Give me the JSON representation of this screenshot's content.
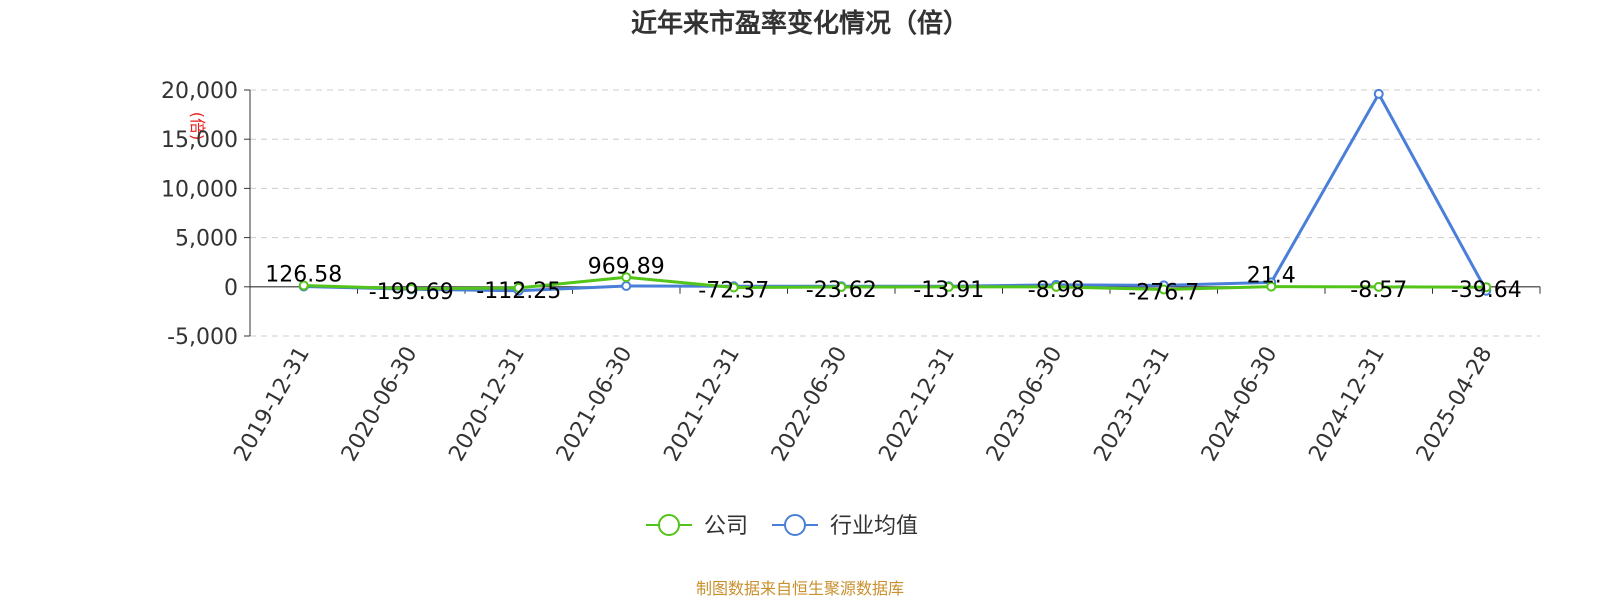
{
  "chart_data": {
    "type": "line",
    "title": "近年来市盈率变化情况（倍）",
    "ylabel": "(倍)",
    "xlabel": "",
    "categories": [
      "2019-12-31",
      "2020-06-30",
      "2020-12-31",
      "2021-06-30",
      "2021-12-31",
      "2022-06-30",
      "2022-12-31",
      "2023-06-30",
      "2023-12-31",
      "2024-06-30",
      "2024-12-31",
      "2025-04-28"
    ],
    "yticks": [
      -5000,
      0,
      5000,
      10000,
      15000,
      20000
    ],
    "ytick_labels": [
      "-5,000",
      "0",
      "5,000",
      "10,000",
      "15,000",
      "20,000"
    ],
    "ylim": [
      -5000,
      20000
    ],
    "grid": true,
    "legend_position": "bottom",
    "series": [
      {
        "name": "公司",
        "color": "#52c41a",
        "values": [
          126.58,
          -199.69,
          -112.25,
          969.89,
          -72.37,
          -23.62,
          -13.91,
          -8.98,
          -276.7,
          21.4,
          -8.57,
          -39.64
        ],
        "labels": [
          "126.58",
          "-199.69",
          "-112.25",
          "969.89",
          "-72.37",
          "-23.62",
          "-13.91",
          "-8.98",
          "-276.7",
          "21.4",
          "-8.57",
          "-39.64"
        ]
      },
      {
        "name": "行业均值",
        "color": "#4a7fd9",
        "values": [
          30,
          -250,
          -400,
          80,
          50,
          60,
          50,
          200,
          150,
          450,
          19600,
          -400
        ]
      }
    ]
  },
  "source_text": "制图数据来自恒生聚源数据库"
}
